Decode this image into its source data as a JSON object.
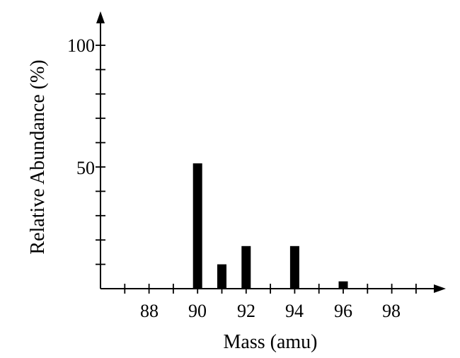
{
  "chart_data": {
    "type": "bar",
    "xlabel": "Mass (amu)",
    "ylabel": "Relative Abundance (%)",
    "x_tick_labels": [
      "88",
      "90",
      "92",
      "94",
      "96",
      "98"
    ],
    "y_tick_labels": [
      "50",
      "100"
    ],
    "xlim": [
      86,
      100
    ],
    "ylim": [
      0,
      100
    ],
    "x": [
      90,
      91,
      92,
      94,
      96
    ],
    "values": [
      51.5,
      10,
      17.5,
      17.5,
      3
    ],
    "grid": false,
    "bar_color": "#000000"
  }
}
